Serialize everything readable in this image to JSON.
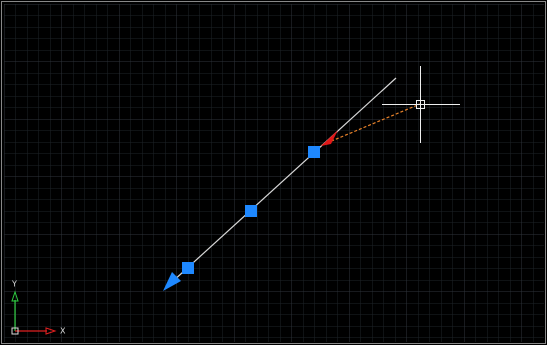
{
  "ucs": {
    "y_label": "Y",
    "x_label": "X"
  }
}
